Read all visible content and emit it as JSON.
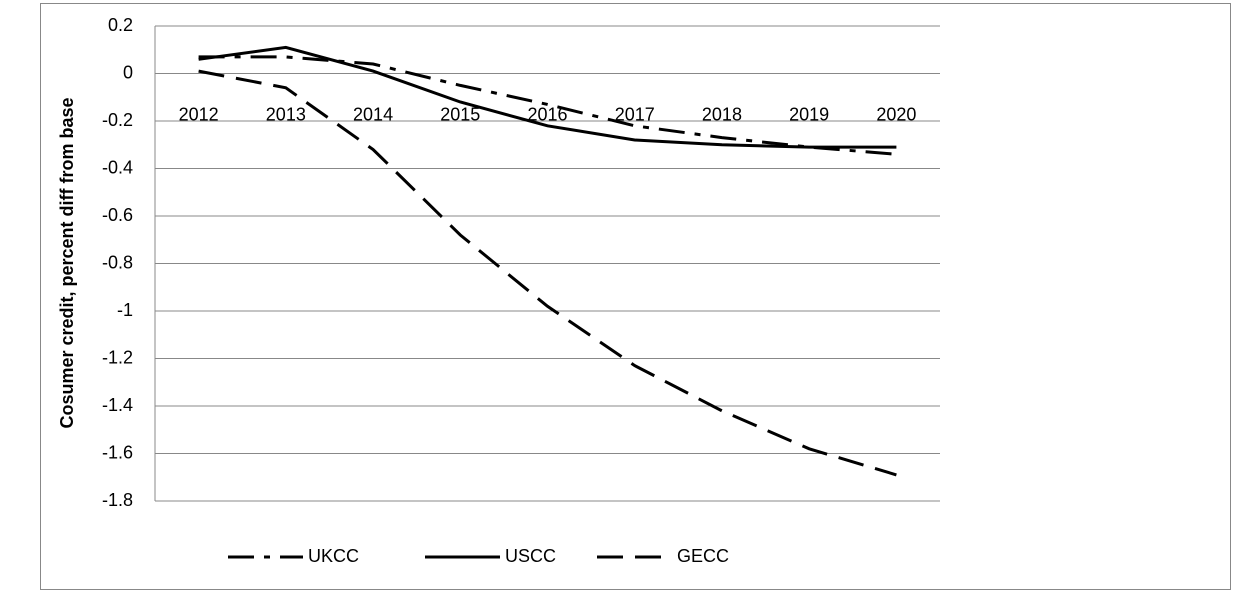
{
  "chart_data": {
    "type": "line",
    "y_label": "Cosumer credit, percent diff from base",
    "categories": [
      "2012",
      "2013",
      "2014",
      "2015",
      "2016",
      "2017",
      "2018",
      "2019",
      "2020"
    ],
    "series": [
      {
        "name": "UKCC",
        "color": "#000000",
        "linestyle": "dashdot",
        "values": [
          0.07,
          0.07,
          0.04,
          -0.05,
          -0.13,
          -0.22,
          -0.27,
          -0.31,
          -0.34
        ]
      },
      {
        "name": "USCC",
        "color": "#000000",
        "linestyle": "solid",
        "values": [
          0.06,
          0.11,
          0.01,
          -0.12,
          -0.22,
          -0.28,
          -0.3,
          -0.31,
          -0.31
        ]
      },
      {
        "name": "GECC",
        "color": "#000000",
        "linestyle": "dashed",
        "values": [
          0.01,
          -0.06,
          -0.32,
          -0.68,
          -0.98,
          -1.23,
          -1.42,
          -1.58,
          -1.69
        ]
      }
    ],
    "ylim": [
      -1.8,
      0.2
    ],
    "yticks": [
      0.2,
      0,
      -0.2,
      -0.4,
      -0.6,
      -0.8,
      -1,
      -1.2,
      -1.4,
      -1.6,
      -1.8
    ],
    "grid": true,
    "legend": "bottom"
  }
}
